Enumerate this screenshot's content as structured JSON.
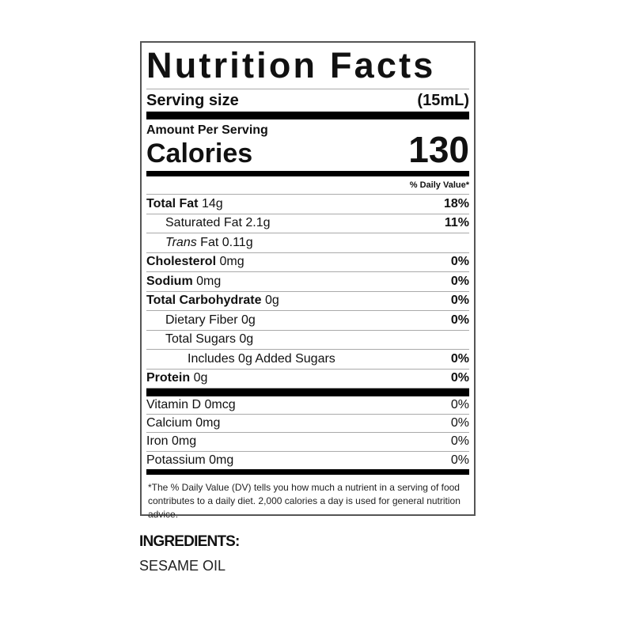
{
  "title": "Nutrition Facts",
  "serving": {
    "label": "Serving size",
    "value": "(15mL)"
  },
  "amount_per_serving": "Amount Per Serving",
  "calories": {
    "label": "Calories",
    "value": "130"
  },
  "daily_value_header": "% Daily Value*",
  "nutrients": [
    {
      "name": "Total Fat",
      "amount": "14g",
      "dv": "18%",
      "bold": true,
      "indent": 0
    },
    {
      "name": "Saturated Fat",
      "amount": "2.1g",
      "dv": "11%",
      "bold": false,
      "indent": 1
    },
    {
      "name": "Trans",
      "name_suffix": "Fat",
      "amount": "0.11g",
      "dv": "",
      "bold": false,
      "indent": 1,
      "italic_prefix": true
    },
    {
      "name": "Cholesterol",
      "amount": "0mg",
      "dv": "0%",
      "bold": true,
      "indent": 0
    },
    {
      "name": "Sodium",
      "amount": "0mg",
      "dv": "0%",
      "bold": true,
      "indent": 0
    },
    {
      "name": "Total Carbohydrate",
      "amount": "0g",
      "dv": "0%",
      "bold": true,
      "indent": 0
    },
    {
      "name": "Dietary Fiber",
      "amount": "0g",
      "dv": "0%",
      "bold": false,
      "indent": 1
    },
    {
      "name": "Total Sugars",
      "amount": "0g",
      "dv": "",
      "bold": false,
      "indent": 1
    },
    {
      "name": "Includes 0g Added Sugars",
      "amount": "",
      "dv": "0%",
      "bold": false,
      "indent": 2
    },
    {
      "name": "Protein",
      "amount": "0g",
      "dv": "0%",
      "bold": true,
      "indent": 0
    }
  ],
  "vitamins": [
    {
      "name": "Vitamin D 0mcg",
      "dv": "0%"
    },
    {
      "name": "Calcium 0mg",
      "dv": "0%"
    },
    {
      "name": "Iron 0mg",
      "dv": "0%"
    },
    {
      "name": "Potassium 0mg",
      "dv": "0%"
    }
  ],
  "footnote": "*The % Daily Value (DV) tells you how much a nutrient in a serving of food contributes to a daily diet. 2,000 calories a day is used for general nutrition advice.",
  "ingredients": {
    "heading": "INGREDIENTS:",
    "text": "SESAME OIL"
  }
}
